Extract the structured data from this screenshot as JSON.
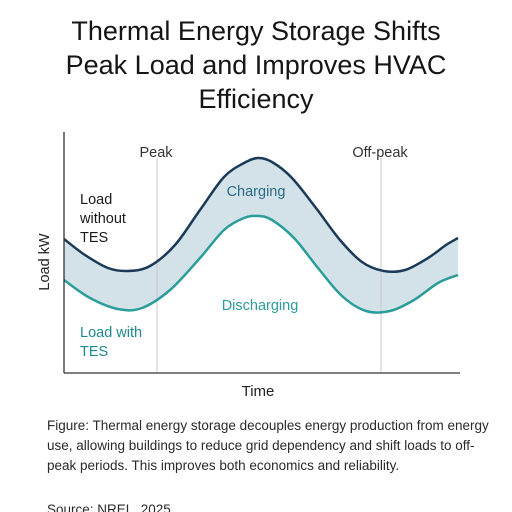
{
  "title_lines": [
    "Thermal Energy Storage Shifts",
    "Peak Load and Improves HVAC",
    "Efficiency"
  ],
  "chart_data": {
    "type": "area",
    "xlabel": "Time",
    "ylabel": "Load kW",
    "period_labels": [
      "Peak",
      "Off-peak"
    ],
    "series": [
      {
        "name": "Load without TES",
        "label_lines": [
          "Load",
          "without",
          "TES"
        ]
      },
      {
        "name": "Load with TES",
        "label_lines": [
          "Load with",
          "TES"
        ]
      }
    ],
    "annotations": [
      "Charging",
      "Discharging"
    ],
    "colors": {
      "without_tes": "#1b3a57",
      "with_tes": "#2a9d9a",
      "band_fill": "#d3e2e9",
      "axis": "#333333",
      "divider": "#c8c8c8",
      "charging_text": "#2c6a85",
      "discharging_text": "#2a9d9a",
      "label_without_text": "#1a1a1a",
      "label_with_text": "#1f8a8e"
    },
    "grid": false,
    "ticks": false
  },
  "caption": "Figure: Thermal energy storage decouples energy production from energy use, allowing buildings to reduce grid dependency and shift loads to off-peak periods. This improves both economics and reliability.",
  "source": "Source: NREL, 2025"
}
